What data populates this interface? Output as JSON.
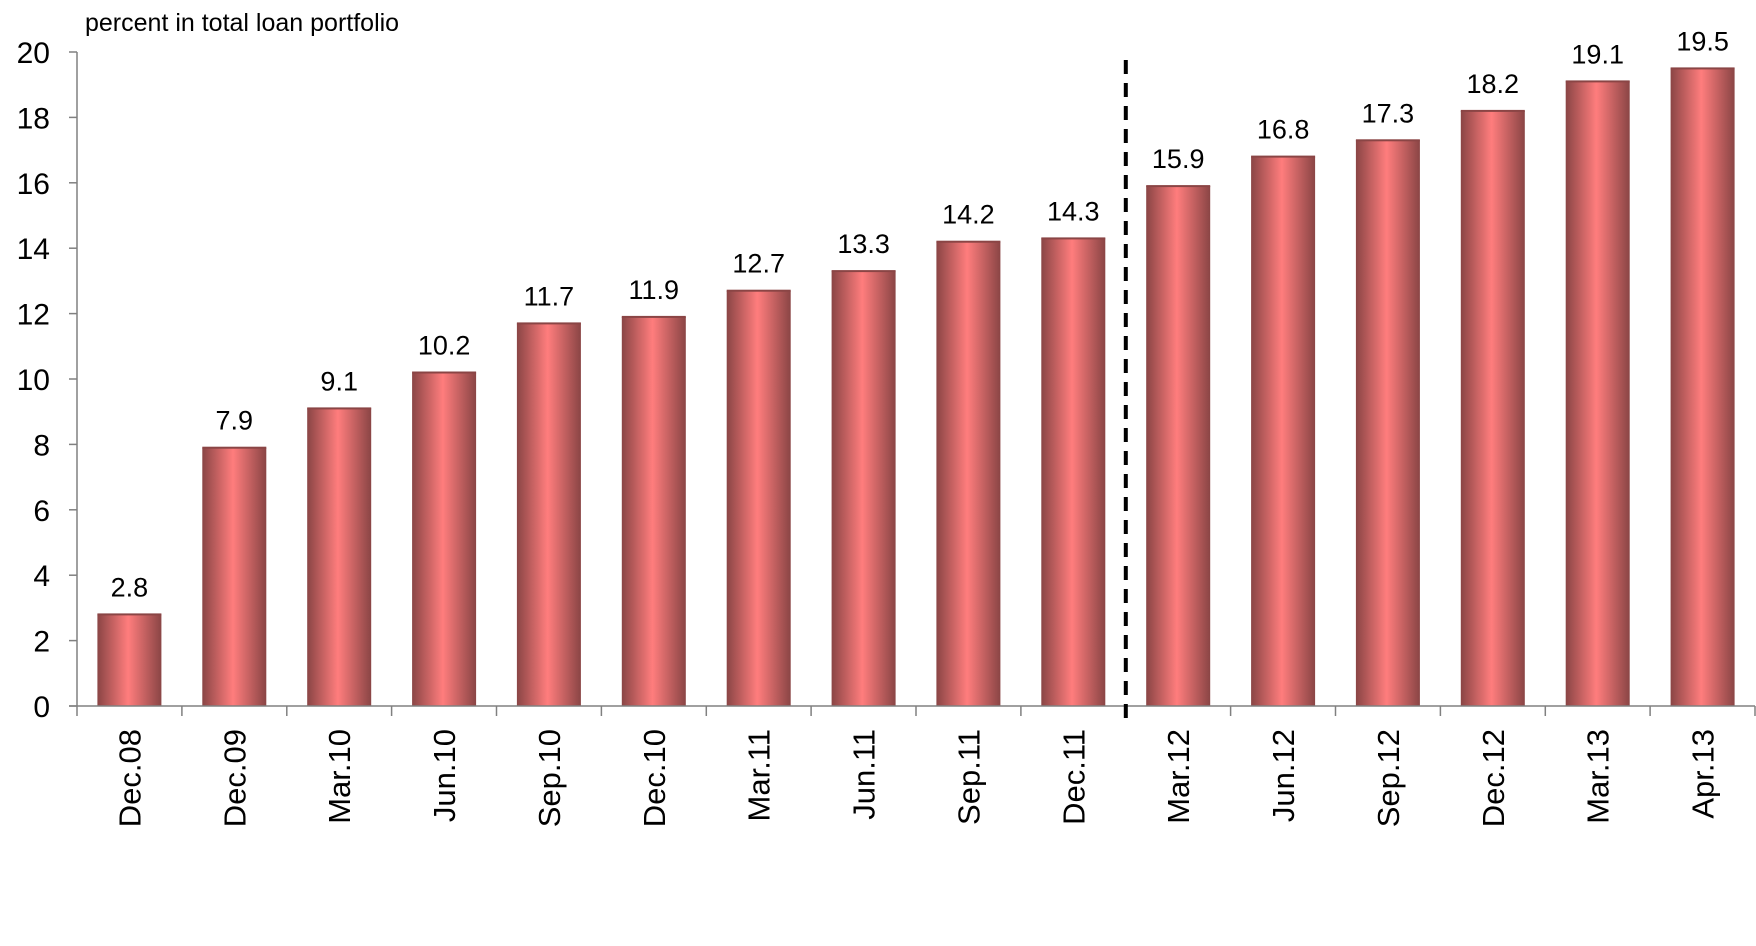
{
  "chart_data": {
    "type": "bar",
    "ylabel": "percent in total loan portfolio",
    "xlabel": "",
    "title": "",
    "ylim": [
      0,
      20
    ],
    "yticks": [
      "0",
      "2",
      "4",
      "6",
      "8",
      "10",
      "12",
      "14",
      "16",
      "18",
      "20"
    ],
    "categories": [
      "Dec.08",
      "Dec.09",
      "Mar.10",
      "Jun.10",
      "Sep.10",
      "Dec.10",
      "Mar.11",
      "Jun.11",
      "Sep.11",
      "Dec.11",
      "Mar.12",
      "Jun.12",
      "Sep.12",
      "Dec.12",
      "Mar.13",
      "Apr.13"
    ],
    "values": [
      2.8,
      7.9,
      9.1,
      10.2,
      11.7,
      11.9,
      12.7,
      13.3,
      14.2,
      14.3,
      15.9,
      16.8,
      17.3,
      18.2,
      19.1,
      19.5
    ],
    "data_labels": [
      "2.8",
      "7.9",
      "9.1",
      "10.2",
      "11.7",
      "11.9",
      "12.7",
      "13.3",
      "14.2",
      "14.3",
      "15.9",
      "16.8",
      "17.3",
      "18.2",
      "19.1",
      "19.5"
    ],
    "divider_after_category": "Dec.11",
    "grid": false,
    "colors": {
      "bar_center": "#ff7d7d",
      "bar_edge": "#8a4545",
      "axis": "#808080",
      "divider": "#000000"
    }
  }
}
